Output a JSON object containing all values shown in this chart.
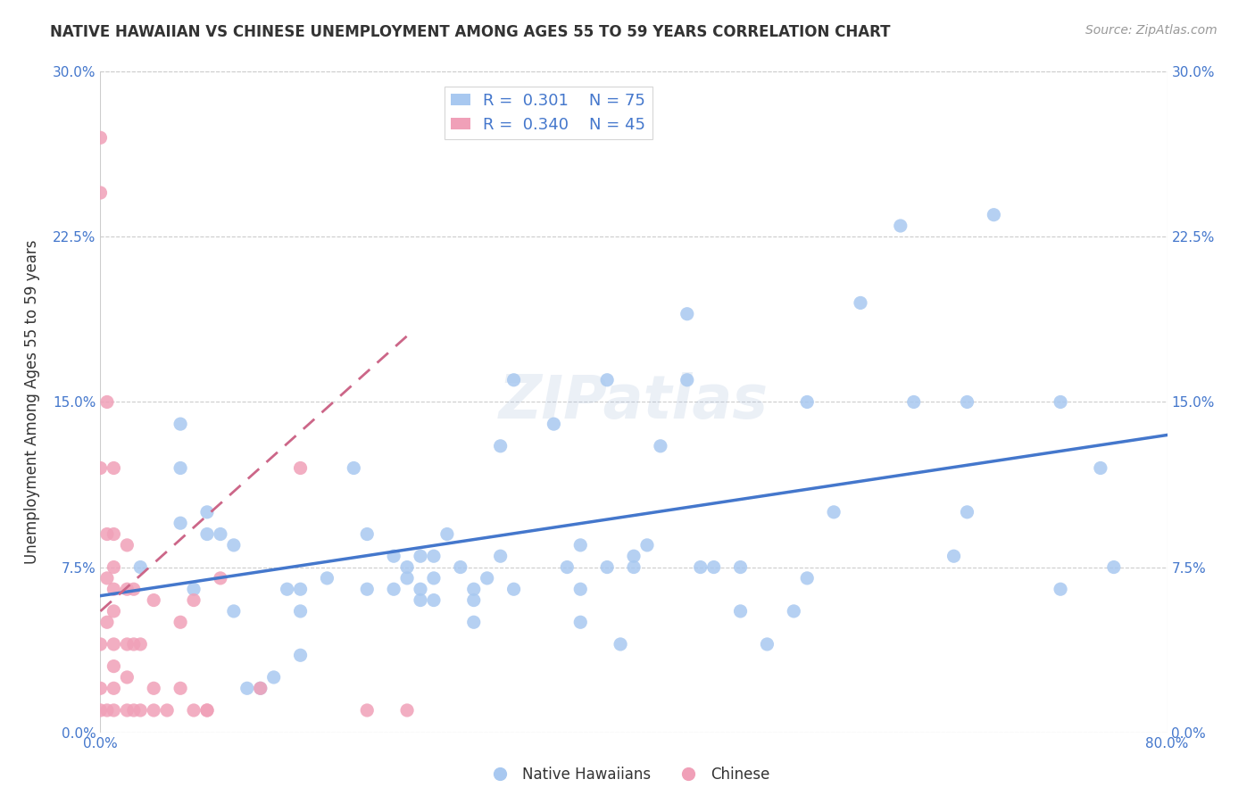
{
  "title": "NATIVE HAWAIIAN VS CHINESE UNEMPLOYMENT AMONG AGES 55 TO 59 YEARS CORRELATION CHART",
  "source": "Source: ZipAtlas.com",
  "xlabel": "",
  "ylabel": "Unemployment Among Ages 55 to 59 years",
  "xlim": [
    0.0,
    0.8
  ],
  "ylim": [
    0.0,
    0.3
  ],
  "xticks": [
    0.0,
    0.1,
    0.2,
    0.3,
    0.4,
    0.5,
    0.6,
    0.7,
    0.8
  ],
  "yticks": [
    0.0,
    0.075,
    0.15,
    0.225,
    0.3
  ],
  "ytick_labels": [
    "0.0%",
    "7.5%",
    "15.0%",
    "22.5%",
    "30.0%"
  ],
  "xtick_labels": [
    "0.0%",
    "",
    "",
    "",
    "",
    "",
    "",
    "",
    "80.0%"
  ],
  "legend_blue_r": "0.301",
  "legend_blue_n": "75",
  "legend_pink_r": "0.340",
  "legend_pink_n": "45",
  "blue_color": "#a8c8f0",
  "pink_color": "#f0a0b8",
  "line_blue": "#4477cc",
  "line_pink": "#cc6688",
  "watermark": "ZIPatlas",
  "blue_scatter_x": [
    0.03,
    0.06,
    0.06,
    0.06,
    0.07,
    0.08,
    0.08,
    0.09,
    0.1,
    0.1,
    0.11,
    0.12,
    0.13,
    0.14,
    0.15,
    0.15,
    0.15,
    0.17,
    0.19,
    0.2,
    0.2,
    0.22,
    0.22,
    0.23,
    0.23,
    0.24,
    0.24,
    0.24,
    0.25,
    0.25,
    0.25,
    0.26,
    0.27,
    0.28,
    0.28,
    0.28,
    0.29,
    0.3,
    0.3,
    0.31,
    0.31,
    0.34,
    0.35,
    0.36,
    0.36,
    0.36,
    0.38,
    0.38,
    0.39,
    0.4,
    0.4,
    0.41,
    0.42,
    0.44,
    0.44,
    0.45,
    0.46,
    0.48,
    0.48,
    0.5,
    0.52,
    0.53,
    0.53,
    0.55,
    0.57,
    0.6,
    0.61,
    0.64,
    0.65,
    0.65,
    0.67,
    0.72,
    0.72,
    0.75,
    0.76
  ],
  "blue_scatter_y": [
    0.075,
    0.14,
    0.12,
    0.095,
    0.065,
    0.1,
    0.09,
    0.09,
    0.085,
    0.055,
    0.02,
    0.02,
    0.025,
    0.065,
    0.065,
    0.055,
    0.035,
    0.07,
    0.12,
    0.09,
    0.065,
    0.065,
    0.08,
    0.075,
    0.07,
    0.065,
    0.08,
    0.06,
    0.08,
    0.07,
    0.06,
    0.09,
    0.075,
    0.065,
    0.06,
    0.05,
    0.07,
    0.13,
    0.08,
    0.065,
    0.16,
    0.14,
    0.075,
    0.065,
    0.085,
    0.05,
    0.16,
    0.075,
    0.04,
    0.08,
    0.075,
    0.085,
    0.13,
    0.19,
    0.16,
    0.075,
    0.075,
    0.075,
    0.055,
    0.04,
    0.055,
    0.15,
    0.07,
    0.1,
    0.195,
    0.23,
    0.15,
    0.08,
    0.15,
    0.1,
    0.235,
    0.065,
    0.15,
    0.12,
    0.075
  ],
  "pink_scatter_x": [
    0.0,
    0.0,
    0.0,
    0.0,
    0.0,
    0.0,
    0.005,
    0.005,
    0.005,
    0.005,
    0.005,
    0.01,
    0.01,
    0.01,
    0.01,
    0.01,
    0.01,
    0.01,
    0.01,
    0.01,
    0.02,
    0.02,
    0.02,
    0.02,
    0.02,
    0.025,
    0.025,
    0.025,
    0.03,
    0.03,
    0.04,
    0.04,
    0.04,
    0.05,
    0.06,
    0.06,
    0.07,
    0.07,
    0.08,
    0.08,
    0.09,
    0.12,
    0.15,
    0.2,
    0.23
  ],
  "pink_scatter_y": [
    0.27,
    0.245,
    0.12,
    0.04,
    0.02,
    0.01,
    0.15,
    0.09,
    0.07,
    0.05,
    0.01,
    0.12,
    0.09,
    0.075,
    0.065,
    0.055,
    0.04,
    0.03,
    0.02,
    0.01,
    0.085,
    0.065,
    0.04,
    0.025,
    0.01,
    0.065,
    0.04,
    0.01,
    0.04,
    0.01,
    0.06,
    0.02,
    0.01,
    0.01,
    0.05,
    0.02,
    0.06,
    0.01,
    0.01,
    0.01,
    0.07,
    0.02,
    0.12,
    0.01,
    0.01
  ],
  "blue_line_x": [
    0.0,
    0.8
  ],
  "blue_line_y": [
    0.062,
    0.135
  ],
  "pink_line_x": [
    0.0,
    0.23
  ],
  "pink_line_y": [
    0.055,
    0.18
  ]
}
